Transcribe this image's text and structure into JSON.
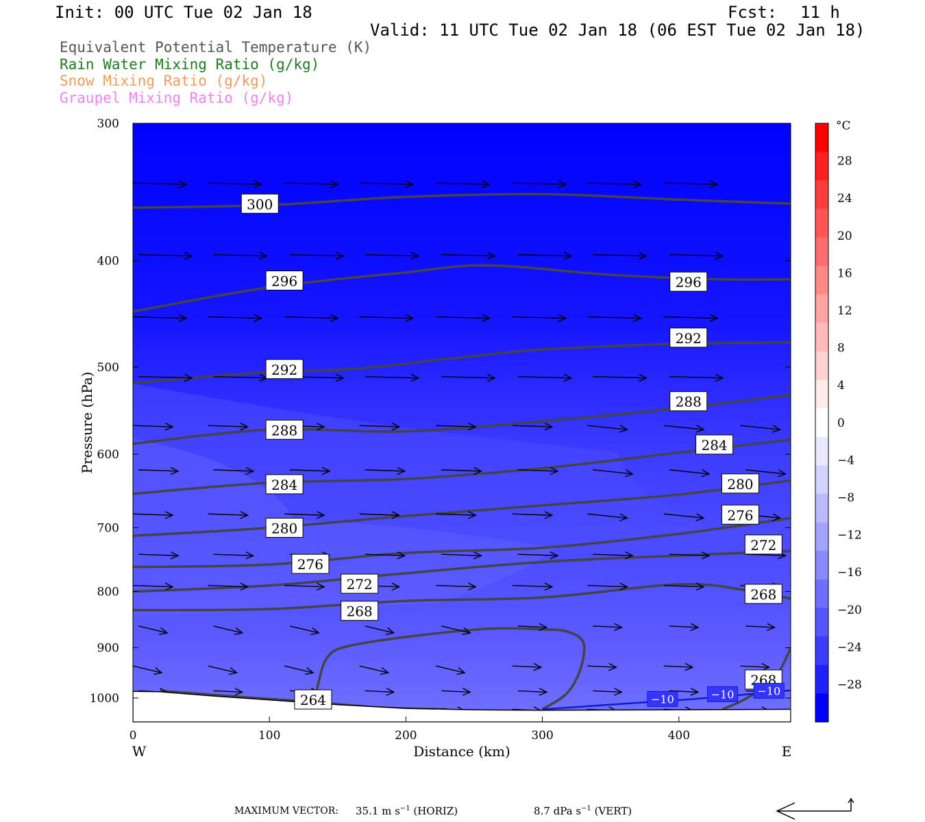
{
  "header": {
    "init": "Init: 00 UTC Tue 02 Jan 18",
    "fcst_label": "Fcst:",
    "fcst_value": "11 h",
    "valid": "Valid: 11 UTC Tue 02 Jan 18 (06 EST Tue 02 Jan 18)"
  },
  "legend": [
    {
      "text": "Equivalent Potential Temperature (K)",
      "color": "#555555"
    },
    {
      "text": "Rain Water Mixing Ratio (g/kg)",
      "color": "#1f7a1f"
    },
    {
      "text": "Snow Mixing Ratio (g/kg)",
      "color": "#f39a5d"
    },
    {
      "text": "Graupel Mixing Ratio (g/kg)",
      "color": "#ee82ee"
    }
  ],
  "chart_data": {
    "type": "cross-section",
    "xlabel": "Distance (km)",
    "ylabel": "Pressure (hPa)",
    "xlim": [
      0,
      482
    ],
    "ylim": [
      1030,
      300
    ],
    "y_scale": "log-pressure",
    "x_ticks": [
      "0",
      "100",
      "200",
      "300",
      "400"
    ],
    "y_ticks": [
      "300",
      "400",
      "500",
      "600",
      "700",
      "800",
      "900",
      "1000"
    ],
    "x_end_labels": {
      "left": "W",
      "right": "E"
    },
    "colorbar": {
      "unit": "°C",
      "labels": [
        "28",
        "24",
        "20",
        "16",
        "12",
        "8",
        "4",
        "0",
        "−4",
        "−8",
        "−12",
        "−16",
        "−20",
        "−24",
        "−28"
      ],
      "colors": [
        "#ff0000",
        "#ff2020",
        "#ff3c3c",
        "#ff5555",
        "#ff6e6e",
        "#ff8888",
        "#ffa2a2",
        "#ffbaba",
        "#ffd2d2",
        "#ffeaea",
        "#ffffff",
        "#eaeaff",
        "#d2d2ff",
        "#babaff",
        "#a2a2ff",
        "#8888ff",
        "#6e6eff",
        "#5555ff",
        "#3c3cff",
        "#2020ff",
        "#0000ff"
      ]
    },
    "theta_e_contours": [
      {
        "label": "300",
        "points": [
          [
            0,
            358
          ],
          [
            100,
            356
          ],
          [
            200,
            350
          ],
          [
            300,
            348
          ],
          [
            400,
            352
          ],
          [
            482,
            355
          ]
        ]
      },
      {
        "label": "296",
        "points": [
          [
            0,
            445
          ],
          [
            100,
            423
          ],
          [
            200,
            410
          ],
          [
            260,
            404
          ],
          [
            350,
            412
          ],
          [
            430,
            416
          ],
          [
            482,
            416
          ]
        ]
      },
      {
        "label": "292",
        "points": [
          [
            0,
            517
          ],
          [
            100,
            505
          ],
          [
            160,
            502
          ],
          [
            240,
            490
          ],
          [
            300,
            482
          ],
          [
            400,
            476
          ],
          [
            482,
            475
          ]
        ]
      },
      {
        "label": "288",
        "points": [
          [
            0,
            587
          ],
          [
            100,
            570
          ],
          [
            200,
            572
          ],
          [
            300,
            560
          ],
          [
            400,
            545
          ],
          [
            482,
            530
          ]
        ]
      },
      {
        "label": "284",
        "points": [
          [
            0,
            652
          ],
          [
            100,
            637
          ],
          [
            200,
            632
          ],
          [
            300,
            618
          ],
          [
            400,
            598
          ],
          [
            482,
            582
          ]
        ]
      },
      {
        "label": "280",
        "points": [
          [
            0,
            712
          ],
          [
            100,
            700
          ],
          [
            200,
            683
          ],
          [
            300,
            668
          ],
          [
            400,
            653
          ],
          [
            482,
            634
          ]
        ]
      },
      {
        "label": "276",
        "points": [
          [
            0,
            760
          ],
          [
            100,
            756
          ],
          [
            200,
            738
          ],
          [
            300,
            730
          ],
          [
            400,
            709
          ],
          [
            482,
            686
          ]
        ]
      },
      {
        "label": "272",
        "points": [
          [
            0,
            800
          ],
          [
            100,
            790
          ],
          [
            200,
            770
          ],
          [
            300,
            752
          ],
          [
            400,
            742
          ],
          [
            482,
            735
          ]
        ]
      },
      {
        "label": "268",
        "points": [
          [
            0,
            832
          ],
          [
            100,
            830
          ],
          [
            200,
            816
          ],
          [
            300,
            810
          ],
          [
            400,
            788
          ],
          [
            450,
            798
          ],
          [
            482,
            812
          ]
        ]
      },
      {
        "label": "264",
        "points": [
          [
            20,
            985
          ],
          [
            80,
            998
          ],
          [
            130,
            1008
          ],
          [
            180,
            1020
          ],
          [
            230,
            1024
          ]
        ]
      }
    ],
    "closed_contour_268": [
      [
        134,
        1000
      ],
      [
        136,
        968
      ],
      [
        142,
        920
      ],
      [
        156,
        898
      ],
      [
        200,
        880
      ],
      [
        260,
        865
      ],
      [
        300,
        866
      ],
      [
        318,
        870
      ],
      [
        330,
        890
      ],
      [
        328,
        940
      ],
      [
        318,
        990
      ],
      [
        300,
        1024
      ]
    ],
    "right_contour_268": [
      [
        432,
        1024
      ],
      [
        450,
        1000
      ],
      [
        470,
        960
      ],
      [
        482,
        900
      ]
    ],
    "temperature_contour": {
      "label": "−10",
      "points": [
        [
          300,
          1024
        ],
        [
          360,
          1012
        ],
        [
          420,
          1000
        ],
        [
          482,
          984
        ]
      ]
    },
    "contour_labels": [
      {
        "text": "300",
        "x": 93,
        "p": 355
      },
      {
        "text": "296",
        "x": 111,
        "p": 417
      },
      {
        "text": "296",
        "x": 407,
        "p": 418
      },
      {
        "text": "292",
        "x": 111,
        "p": 502
      },
      {
        "text": "292",
        "x": 407,
        "p": 470
      },
      {
        "text": "288",
        "x": 111,
        "p": 570
      },
      {
        "text": "288",
        "x": 407,
        "p": 537
      },
      {
        "text": "284",
        "x": 111,
        "p": 639
      },
      {
        "text": "284",
        "x": 426,
        "p": 588
      },
      {
        "text": "280",
        "x": 111,
        "p": 700
      },
      {
        "text": "280",
        "x": 445,
        "p": 638
      },
      {
        "text": "276",
        "x": 130,
        "p": 755
      },
      {
        "text": "276",
        "x": 445,
        "p": 681
      },
      {
        "text": "272",
        "x": 166,
        "p": 787
      },
      {
        "text": "272",
        "x": 462,
        "p": 725
      },
      {
        "text": "268",
        "x": 166,
        "p": 833
      },
      {
        "text": "268",
        "x": 462,
        "p": 804
      },
      {
        "text": "268",
        "x": 462,
        "p": 962
      },
      {
        "text": "264",
        "x": 132,
        "p": 1003
      }
    ],
    "temp_labels": [
      {
        "text": "−10",
        "x": 388,
        "p": 1002
      },
      {
        "text": "−10",
        "x": 432,
        "p": 992
      },
      {
        "text": "−10",
        "x": 466,
        "p": 985
      }
    ],
    "wind_rows_p": [
      340,
      395,
      450,
      510,
      565,
      620,
      680,
      740,
      790,
      860,
      935,
      985,
      1024
    ],
    "wind_cols_km": [
      0,
      55,
      111,
      166,
      222,
      278,
      333,
      389,
      445
    ]
  },
  "footer": {
    "max_vector_label": "MAXIMUM VECTOR:",
    "horiz_value": "35.1 m s",
    "horiz_sup": "−1",
    "horiz_unit": " (HORIZ)",
    "vert_value": "8.7 dPa s",
    "vert_sup": "−1",
    "vert_unit": " (VERT)"
  }
}
